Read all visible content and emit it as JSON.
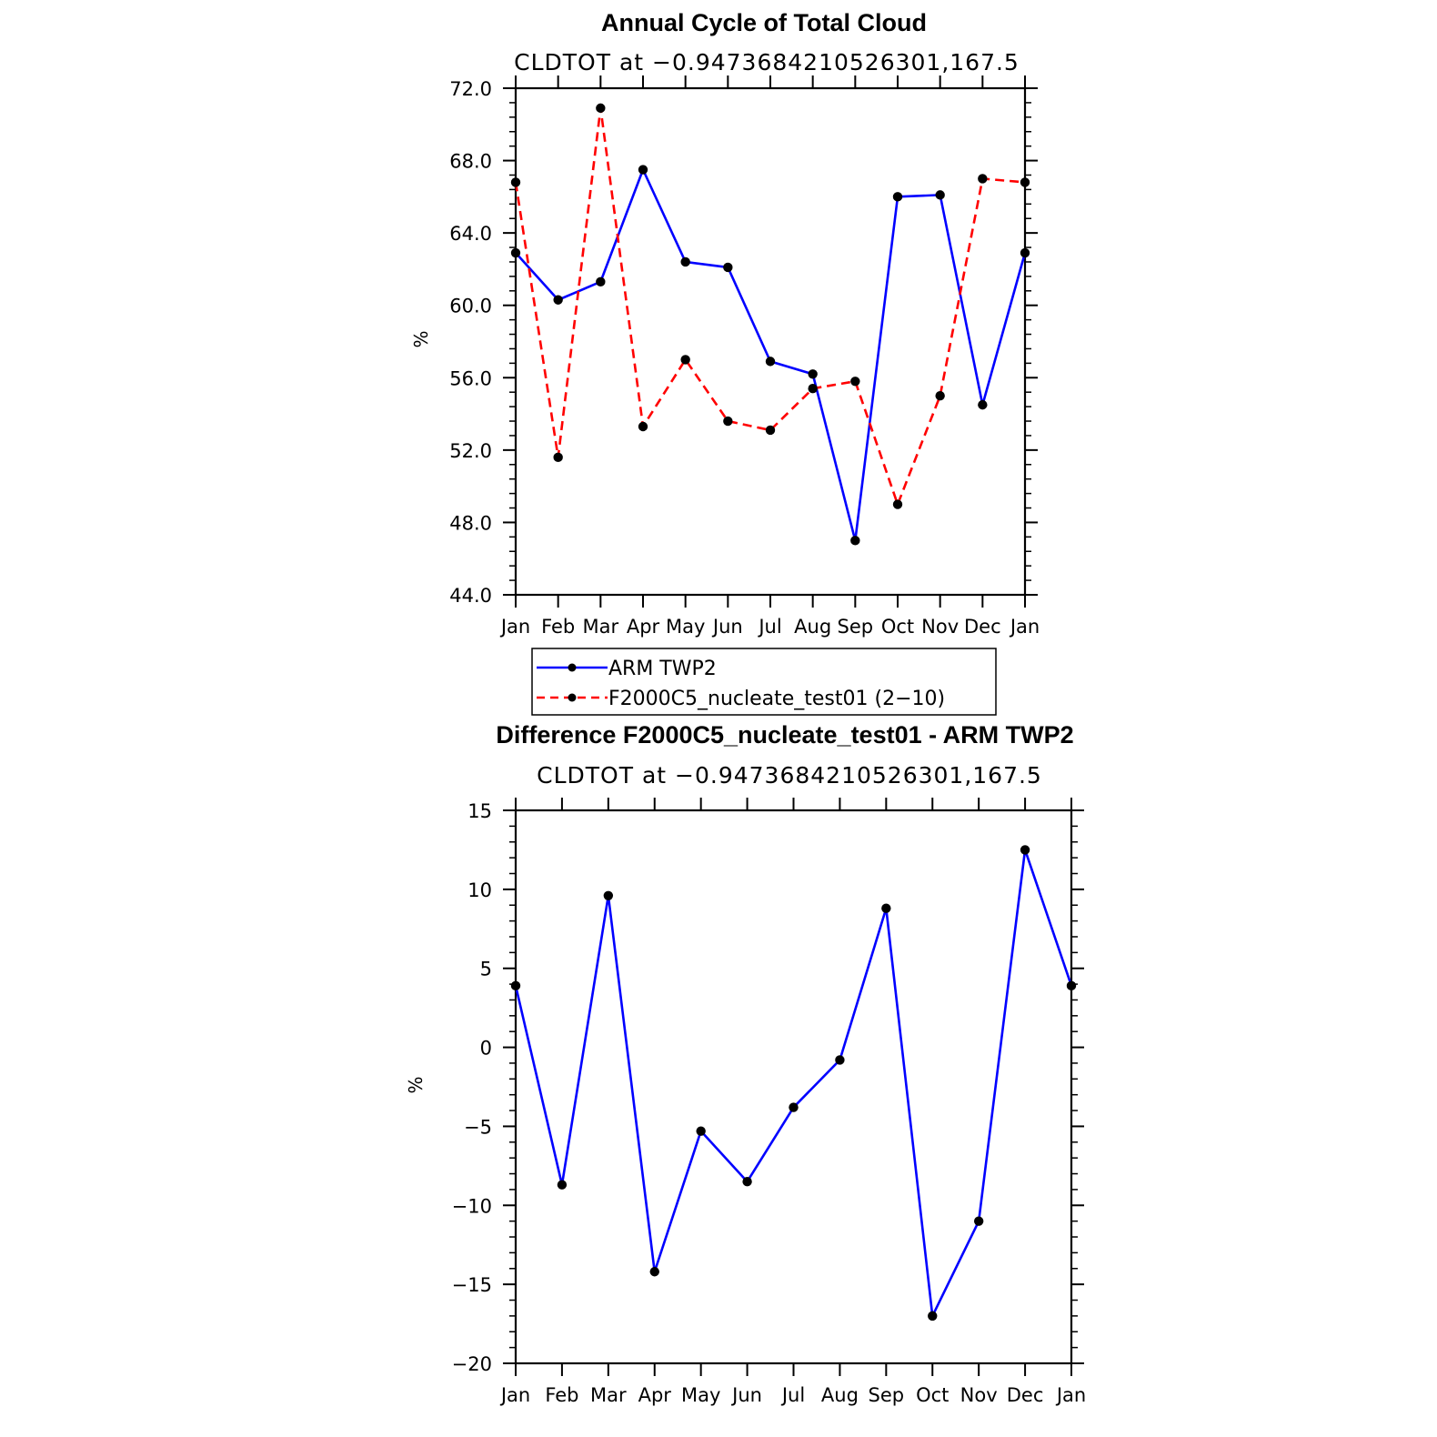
{
  "chart_data": [
    {
      "type": "line",
      "title": "Annual Cycle of Total Cloud",
      "subtitle": "CLDTOT at −0.9473684210526301,167.5",
      "xlabel": "",
      "ylabel": "%",
      "categories": [
        "Jan",
        "Feb",
        "Mar",
        "Apr",
        "May",
        "Jun",
        "Jul",
        "Aug",
        "Sep",
        "Oct",
        "Nov",
        "Dec",
        "Jan"
      ],
      "ylim": [
        44,
        72
      ],
      "yticks": [
        "44.0",
        "48.0",
        "52.0",
        "56.0",
        "60.0",
        "64.0",
        "68.0",
        "72.0"
      ],
      "series": [
        {
          "name": "ARM  TWP2",
          "color": "#0000ff",
          "dash": "solid",
          "values": [
            62.9,
            60.3,
            61.3,
            67.5,
            62.4,
            62.1,
            56.9,
            56.2,
            47.0,
            66.0,
            66.1,
            54.5,
            62.9
          ]
        },
        {
          "name": "F2000C5_nucleate_test01 (2−10)",
          "color": "#ff0000",
          "dash": "dashed",
          "values": [
            66.8,
            51.6,
            70.9,
            53.3,
            57.0,
            53.6,
            53.1,
            55.4,
            55.8,
            49.0,
            55.0,
            67.0,
            66.8
          ]
        }
      ],
      "legend": [
        "ARM  TWP2",
        "F2000C5_nucleate_test01 (2−10)"
      ]
    },
    {
      "type": "line",
      "title": "Difference F2000C5_nucleate_test01 - ARM TWP2",
      "subtitle": "CLDTOT at −0.9473684210526301,167.5",
      "xlabel": "",
      "ylabel": "%",
      "categories": [
        "Jan",
        "Feb",
        "Mar",
        "Apr",
        "May",
        "Jun",
        "Jul",
        "Aug",
        "Sep",
        "Oct",
        "Nov",
        "Dec",
        "Jan"
      ],
      "ylim": [
        -20,
        15
      ],
      "yticks": [
        "−20",
        "−15",
        "−10",
        "−5",
        "0",
        "5",
        "10",
        "15"
      ],
      "series": [
        {
          "name": "Difference",
          "color": "#0000ff",
          "dash": "solid",
          "values": [
            3.9,
            -8.7,
            9.6,
            -14.2,
            -5.3,
            -8.5,
            -3.8,
            -0.8,
            8.8,
            -17.0,
            -11.0,
            12.5,
            3.9
          ]
        }
      ]
    }
  ]
}
